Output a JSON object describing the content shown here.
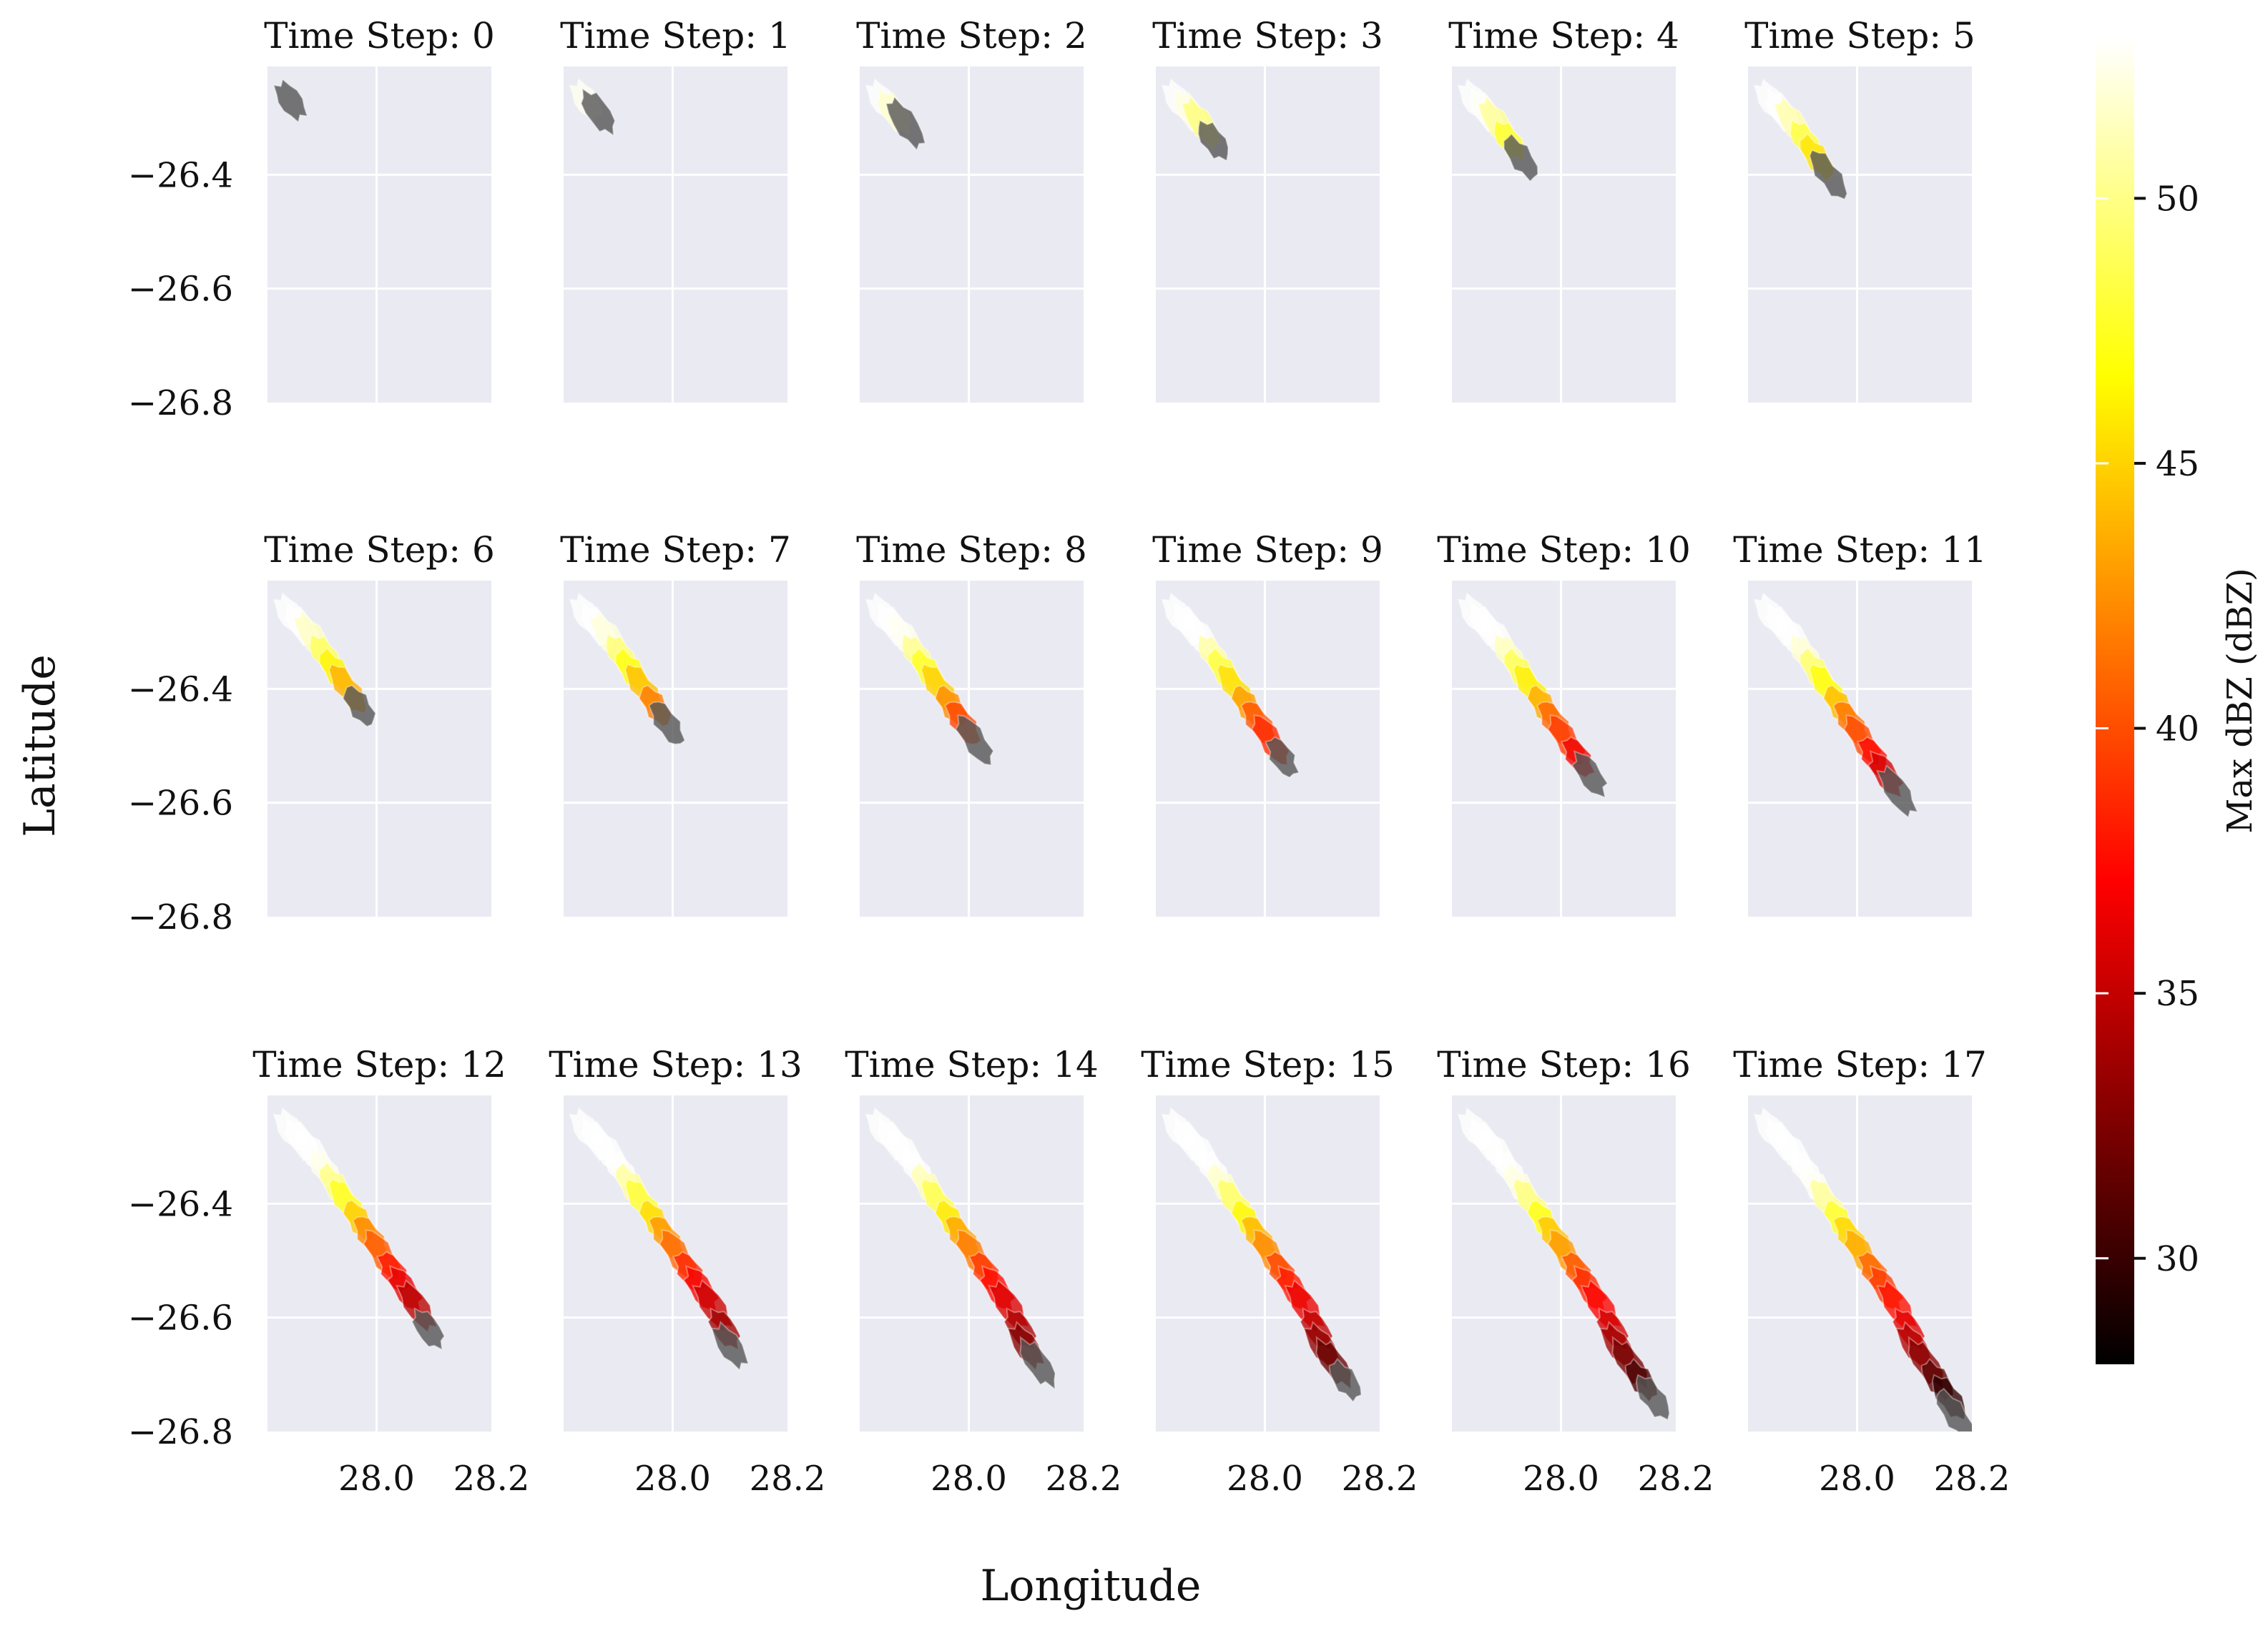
{
  "chart_data": {
    "type": "map-panels",
    "panel_title_prefix": "Time Step: ",
    "time_steps": [
      0,
      1,
      2,
      3,
      4,
      5,
      6,
      7,
      8,
      9,
      10,
      11,
      12,
      13,
      14,
      15,
      16,
      17
    ],
    "xlabel": "Longitude",
    "ylabel": "Latitude",
    "xlim": [
      27.81,
      28.2
    ],
    "ylim": [
      -26.8,
      -26.21
    ],
    "xticks": [
      "28.0",
      "28.2"
    ],
    "xtick_values": [
      28.0,
      28.2
    ],
    "yticks": [
      "−26.4",
      "−26.6",
      "−26.8"
    ],
    "ytick_values": [
      -26.4,
      -26.6,
      -26.8
    ],
    "grid": true,
    "colorbar": {
      "label": "Max dBZ (dBZ)",
      "range": [
        28,
        53
      ],
      "ticks": [
        "30",
        "35",
        "40",
        "45",
        "50"
      ],
      "tick_values": [
        30,
        35,
        40,
        45,
        50
      ],
      "colormap": "hot"
    },
    "storm_track": {
      "description": "Storm cells drawn per panel for all time steps up to and including the panel's time step; older cells lighter (higher dBZ colors), newest darkest.",
      "cells": [
        {
          "step": 0,
          "lon": 27.85,
          "lat": -26.27,
          "dbz": 52
        },
        {
          "step": 1,
          "lon": 27.87,
          "lat": -26.29,
          "dbz": 51
        },
        {
          "step": 2,
          "lon": 27.89,
          "lat": -26.31,
          "dbz": 49
        },
        {
          "step": 3,
          "lon": 27.91,
          "lat": -26.34,
          "dbz": 47
        },
        {
          "step": 4,
          "lon": 27.93,
          "lat": -26.37,
          "dbz": 45
        },
        {
          "step": 5,
          "lon": 27.95,
          "lat": -26.4,
          "dbz": 43
        },
        {
          "step": 6,
          "lon": 27.97,
          "lat": -26.43,
          "dbz": 41
        },
        {
          "step": 7,
          "lon": 27.99,
          "lat": -26.46,
          "dbz": 39
        },
        {
          "step": 8,
          "lon": 28.01,
          "lat": -26.49,
          "dbz": 38
        },
        {
          "step": 9,
          "lon": 28.03,
          "lat": -26.52,
          "dbz": 36
        },
        {
          "step": 10,
          "lon": 28.05,
          "lat": -26.55,
          "dbz": 35
        },
        {
          "step": 11,
          "lon": 28.07,
          "lat": -26.58,
          "dbz": 34
        },
        {
          "step": 12,
          "lon": 28.09,
          "lat": -26.62,
          "dbz": 33
        },
        {
          "step": 13,
          "lon": 28.1,
          "lat": -26.65,
          "dbz": 32
        },
        {
          "step": 14,
          "lon": 28.12,
          "lat": -26.68,
          "dbz": 31
        },
        {
          "step": 15,
          "lon": 28.14,
          "lat": -26.71,
          "dbz": 30
        },
        {
          "step": 16,
          "lon": 28.16,
          "lat": -26.74,
          "dbz": 29
        },
        {
          "step": 17,
          "lon": 28.17,
          "lat": -26.77,
          "dbz": 28
        }
      ]
    }
  },
  "colors": {
    "panel_bg": "#eaeaf2",
    "grid": "#ffffff",
    "text": "#111111"
  }
}
